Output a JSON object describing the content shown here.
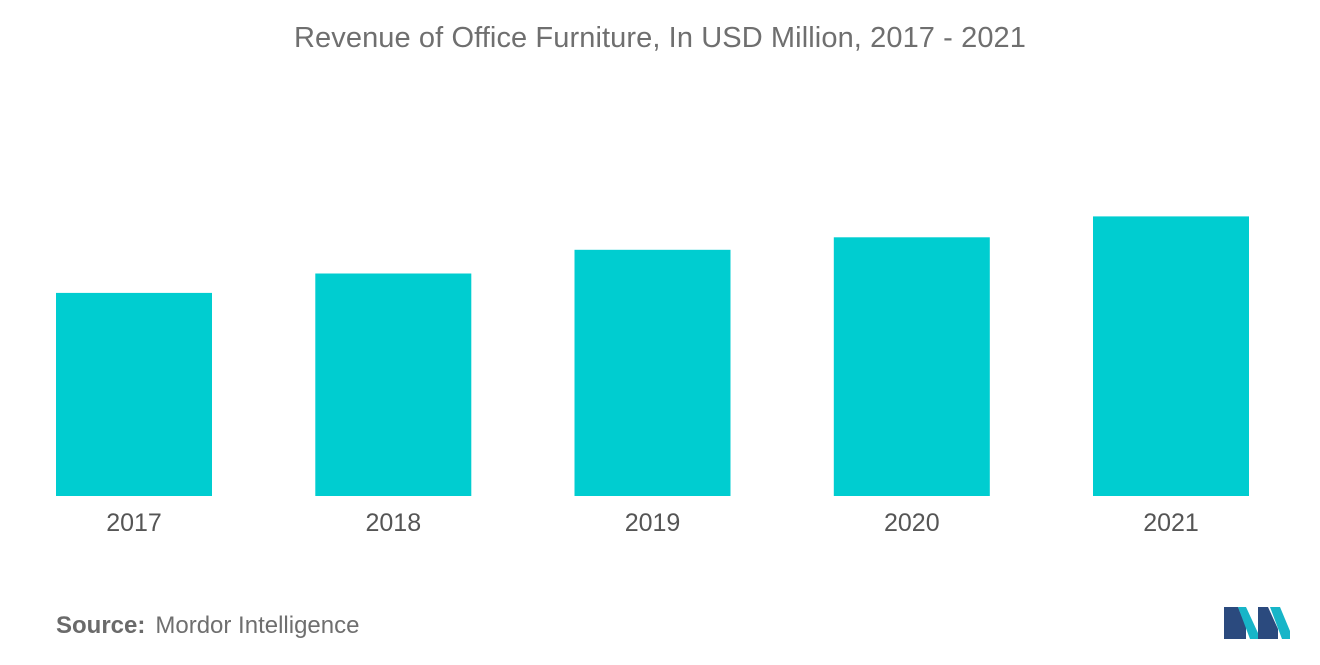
{
  "chart_data": {
    "type": "bar",
    "title": "Revenue of Office Furniture, In USD Million, 2017 - 2021",
    "categories": [
      "2017",
      "2018",
      "2019",
      "2020",
      "2021"
    ],
    "values": [
      73,
      80,
      88.5,
      93,
      100.5
    ],
    "ylim": [
      0,
      110
    ],
    "grid": false,
    "bar_color": "#00cdd0"
  },
  "footer": {
    "source_label": "Source:",
    "source_value": "Mordor Intelligence"
  },
  "logo": {
    "icon": "mordor-intelligence-logo-icon",
    "colors": [
      "#2b4a7e",
      "#17b5c8"
    ]
  }
}
